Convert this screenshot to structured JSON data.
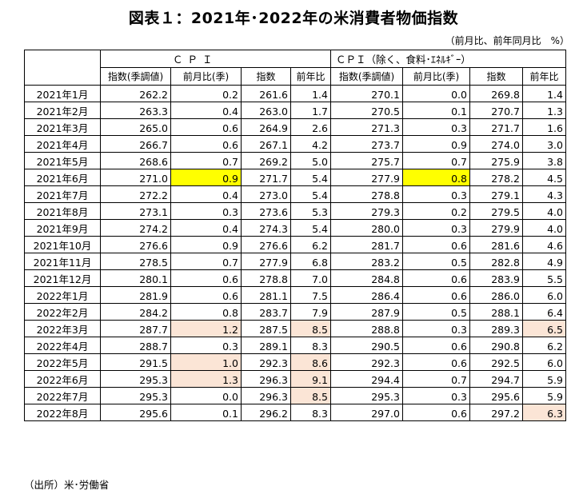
{
  "title": "図表１：2021年･2022年の米消費者物価指数",
  "unit_note": "（前月比、前年同月比　%）",
  "source": "（出所）米･労働省",
  "groups": [
    "ＣＰＩ",
    "ＣＰＩ（除く、食料･ｴﾈﾙｷﾞｰ）"
  ],
  "columns": [
    "指数(季調値)",
    "前月比(季)",
    "指数",
    "前年比",
    "指数(季調値)",
    "前月比(季)",
    "指数",
    "前年比"
  ],
  "highlight_colors": {
    "yellow": "#ffff00",
    "peach": "#fbe5d6"
  },
  "rows": [
    {
      "month": "2021年1月",
      "cells": [
        "262.2",
        "0.2",
        "261.6",
        "1.4",
        "270.1",
        "0.0",
        "269.8",
        "1.4"
      ],
      "hl": [
        "",
        "",
        "",
        "",
        "",
        "",
        "",
        ""
      ]
    },
    {
      "month": "2021年2月",
      "cells": [
        "263.3",
        "0.4",
        "263.0",
        "1.7",
        "270.5",
        "0.1",
        "270.7",
        "1.3"
      ],
      "hl": [
        "",
        "",
        "",
        "",
        "",
        "",
        "",
        ""
      ]
    },
    {
      "month": "2021年3月",
      "cells": [
        "265.0",
        "0.6",
        "264.9",
        "2.6",
        "271.3",
        "0.3",
        "271.7",
        "1.6"
      ],
      "hl": [
        "",
        "",
        "",
        "",
        "",
        "",
        "",
        ""
      ]
    },
    {
      "month": "2021年4月",
      "cells": [
        "266.7",
        "0.6",
        "267.1",
        "4.2",
        "273.7",
        "0.9",
        "274.0",
        "3.0"
      ],
      "hl": [
        "",
        "",
        "",
        "",
        "",
        "",
        "",
        ""
      ]
    },
    {
      "month": "2021年5月",
      "cells": [
        "268.6",
        "0.7",
        "269.2",
        "5.0",
        "275.7",
        "0.7",
        "275.9",
        "3.8"
      ],
      "hl": [
        "",
        "",
        "",
        "",
        "",
        "",
        "",
        ""
      ]
    },
    {
      "month": "2021年6月",
      "cells": [
        "271.0",
        "0.9",
        "271.7",
        "5.4",
        "277.9",
        "0.8",
        "278.2",
        "4.5"
      ],
      "hl": [
        "",
        "yellow",
        "",
        "",
        "",
        "yellow",
        "",
        ""
      ]
    },
    {
      "month": "2021年7月",
      "cells": [
        "272.2",
        "0.4",
        "273.0",
        "5.4",
        "278.8",
        "0.3",
        "279.1",
        "4.3"
      ],
      "hl": [
        "",
        "",
        "",
        "",
        "",
        "",
        "",
        ""
      ]
    },
    {
      "month": "2021年8月",
      "cells": [
        "273.1",
        "0.3",
        "273.6",
        "5.3",
        "279.3",
        "0.2",
        "279.5",
        "4.0"
      ],
      "hl": [
        "",
        "",
        "",
        "",
        "",
        "",
        "",
        ""
      ]
    },
    {
      "month": "2021年9月",
      "cells": [
        "274.2",
        "0.4",
        "274.3",
        "5.4",
        "280.0",
        "0.3",
        "279.9",
        "4.0"
      ],
      "hl": [
        "",
        "",
        "",
        "",
        "",
        "",
        "",
        ""
      ]
    },
    {
      "month": "2021年10月",
      "cells": [
        "276.6",
        "0.9",
        "276.6",
        "6.2",
        "281.7",
        "0.6",
        "281.6",
        "4.6"
      ],
      "hl": [
        "",
        "",
        "",
        "",
        "",
        "",
        "",
        ""
      ]
    },
    {
      "month": "2021年11月",
      "cells": [
        "278.5",
        "0.7",
        "277.9",
        "6.8",
        "283.2",
        "0.5",
        "282.8",
        "4.9"
      ],
      "hl": [
        "",
        "",
        "",
        "",
        "",
        "",
        "",
        ""
      ]
    },
    {
      "month": "2021年12月",
      "cells": [
        "280.1",
        "0.6",
        "278.8",
        "7.0",
        "284.8",
        "0.6",
        "283.9",
        "5.5"
      ],
      "hl": [
        "",
        "",
        "",
        "",
        "",
        "",
        "",
        ""
      ]
    },
    {
      "month": "2022年1月",
      "cells": [
        "281.9",
        "0.6",
        "281.1",
        "7.5",
        "286.4",
        "0.6",
        "286.0",
        "6.0"
      ],
      "hl": [
        "",
        "",
        "",
        "",
        "",
        "",
        "",
        ""
      ]
    },
    {
      "month": "2022年2月",
      "cells": [
        "284.2",
        "0.8",
        "283.7",
        "7.9",
        "287.9",
        "0.5",
        "288.1",
        "6.4"
      ],
      "hl": [
        "",
        "",
        "",
        "",
        "",
        "",
        "",
        ""
      ]
    },
    {
      "month": "2022年3月",
      "cells": [
        "287.7",
        "1.2",
        "287.5",
        "8.5",
        "288.8",
        "0.3",
        "289.3",
        "6.5"
      ],
      "hl": [
        "",
        "peach",
        "",
        "peach",
        "",
        "",
        "",
        "peach"
      ]
    },
    {
      "month": "2022年4月",
      "cells": [
        "288.7",
        "0.3",
        "289.1",
        "8.3",
        "290.5",
        "0.6",
        "290.8",
        "6.2"
      ],
      "hl": [
        "",
        "",
        "",
        "",
        "",
        "",
        "",
        ""
      ]
    },
    {
      "month": "2022年5月",
      "cells": [
        "291.5",
        "1.0",
        "292.3",
        "8.6",
        "292.3",
        "0.6",
        "292.5",
        "6.0"
      ],
      "hl": [
        "",
        "peach",
        "",
        "peach",
        "",
        "",
        "",
        ""
      ]
    },
    {
      "month": "2022年6月",
      "cells": [
        "295.3",
        "1.3",
        "296.3",
        "9.1",
        "294.4",
        "0.7",
        "294.7",
        "5.9"
      ],
      "hl": [
        "",
        "peach",
        "",
        "peach",
        "",
        "",
        "",
        ""
      ]
    },
    {
      "month": "2022年7月",
      "cells": [
        "295.3",
        "0.0",
        "296.3",
        "8.5",
        "295.3",
        "0.3",
        "295.6",
        "5.9"
      ],
      "hl": [
        "",
        "",
        "",
        "peach",
        "",
        "",
        "",
        ""
      ]
    },
    {
      "month": "2022年8月",
      "cells": [
        "295.6",
        "0.1",
        "296.2",
        "8.3",
        "297.0",
        "0.6",
        "297.2",
        "6.3"
      ],
      "hl": [
        "",
        "",
        "",
        "",
        "",
        "",
        "",
        "peach"
      ]
    }
  ]
}
